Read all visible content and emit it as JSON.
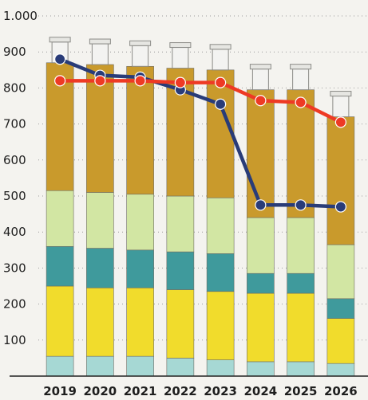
{
  "chart_data": {
    "type": "bar",
    "subtype": "stacked-bar-with-lines",
    "categories": [
      "2019",
      "2020",
      "2021",
      "2022",
      "2023",
      "2024",
      "2025",
      "2026"
    ],
    "y_ticks": [
      "100",
      "200",
      "300",
      "400",
      "500",
      "600",
      "700",
      "800",
      "900",
      "1.000"
    ],
    "ylim": [
      0,
      1000
    ],
    "grid": true,
    "bar_stacks": [
      {
        "color": "#a6d8d4",
        "values": [
          55,
          55,
          55,
          50,
          45,
          40,
          40,
          35
        ]
      },
      {
        "color": "#f1dc2c",
        "values": [
          195,
          190,
          190,
          190,
          190,
          190,
          190,
          125
        ]
      },
      {
        "color": "#3f9a9c",
        "values": [
          110,
          110,
          105,
          105,
          105,
          55,
          55,
          55
        ]
      },
      {
        "color": "#d2e6a3",
        "values": [
          155,
          155,
          155,
          155,
          155,
          155,
          155,
          150
        ]
      },
      {
        "color": "#c99a2c",
        "values": [
          355,
          355,
          355,
          355,
          355,
          355,
          355,
          355
        ]
      }
    ],
    "lines": [
      {
        "color": "#293c78",
        "values": [
          880,
          835,
          830,
          795,
          755,
          475,
          475,
          470
        ]
      },
      {
        "color": "#ee3a24",
        "values": [
          820,
          820,
          820,
          815,
          815,
          765,
          760,
          705
        ]
      }
    ]
  }
}
